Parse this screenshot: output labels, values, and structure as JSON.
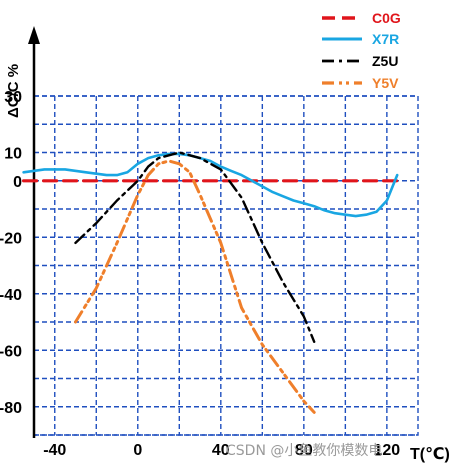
{
  "chart_data": {
    "type": "line",
    "title": "",
    "ylabel": "ΔC/C %",
    "xlabel": "T(℃)",
    "xlim": [
      -50,
      135
    ],
    "ylim": [
      -90,
      30
    ],
    "x_ticks": [
      "-40",
      "0",
      "40",
      "80",
      "120"
    ],
    "x_tick_values": [
      -40,
      0,
      40,
      80,
      120
    ],
    "y_ticks": [
      "30",
      "10",
      "0",
      "-20",
      "-40",
      "-60",
      "-80"
    ],
    "y_tick_values": [
      30,
      10,
      0,
      -20,
      -40,
      -60,
      -80
    ],
    "grid": true,
    "grid_style": "dashed",
    "grid_color": "#1f4fbf",
    "legend_position": "top-right",
    "series": [
      {
        "name": "C0G",
        "color": "#e0151b",
        "style": "dashed",
        "x": [
          -55,
          125
        ],
        "y": [
          0,
          0
        ]
      },
      {
        "name": "X7R",
        "color": "#19a6e2",
        "style": "solid",
        "x": [
          -55,
          -45,
          -35,
          -25,
          -15,
          -10,
          -5,
          0,
          5,
          10,
          15,
          20,
          25,
          30,
          35,
          40,
          45,
          50,
          55,
          60,
          65,
          70,
          75,
          80,
          85,
          90,
          95,
          100,
          105,
          110,
          115,
          120,
          125
        ],
        "y": [
          3,
          4,
          4,
          3,
          2,
          2,
          3,
          6,
          8,
          9,
          9.5,
          9.5,
          9,
          8,
          7,
          5,
          3.5,
          2,
          0,
          -2,
          -4,
          -5.5,
          -7,
          -8,
          -9,
          -10.5,
          -11.5,
          -12,
          -12.5,
          -12,
          -11,
          -7,
          2
        ]
      },
      {
        "name": "Z5U",
        "color": "#000000",
        "style": "dashdot",
        "x": [
          -30,
          -20,
          -10,
          0,
          5,
          10,
          15,
          20,
          25,
          30,
          40,
          50,
          60,
          70,
          80,
          85
        ],
        "y": [
          -22,
          -15,
          -7,
          0,
          5,
          8,
          9,
          10,
          9,
          8,
          4,
          -6,
          -22,
          -36,
          -48,
          -57
        ]
      },
      {
        "name": "Y5V",
        "color": "#ef7f2b",
        "style": "dashdotdot",
        "x": [
          -30,
          -20,
          -10,
          0,
          5,
          10,
          15,
          20,
          25,
          30,
          40,
          50,
          60,
          70,
          80,
          85
        ],
        "y": [
          -50,
          -38,
          -22,
          -5,
          2,
          6,
          7,
          6,
          3,
          -5,
          -22,
          -45,
          -58,
          -68,
          -78,
          -82
        ]
      }
    ]
  },
  "watermark": "CSDN @小鱼教你模数电"
}
